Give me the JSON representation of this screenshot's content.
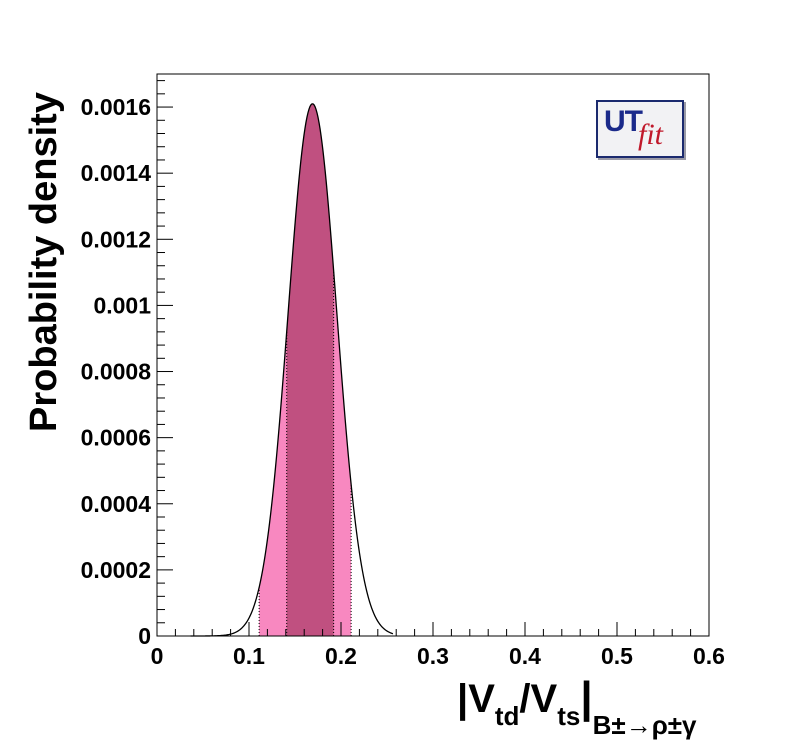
{
  "chart_data": {
    "type": "area",
    "xlabel": {
      "main": "|V",
      "sub1": "td",
      "mid": "/V",
      "sub2": "ts",
      "bar": "|",
      "subscript": "B±→ρ±γ"
    },
    "ylabel": "Probability density",
    "xlim": [
      0,
      0.6
    ],
    "ylim": [
      0,
      0.0017
    ],
    "x_ticks": [
      "0",
      "0.1",
      "0.2",
      "0.3",
      "0.4",
      "0.5",
      "0.6"
    ],
    "y_ticks": [
      "0",
      "0.0002",
      "0.0004",
      "0.0006",
      "0.0008",
      "0.001",
      "0.0012",
      "0.0014",
      "0.0016"
    ],
    "distribution": {
      "shape": "gaussian",
      "mean": 0.169,
      "sigma": 0.0265,
      "peak": 0.00161
    },
    "band_68": [
      0.141,
      0.192
    ],
    "band_95": [
      0.111,
      0.211
    ],
    "grid": false,
    "colors": {
      "band_68": "#c05080",
      "band_95": "#f888c0",
      "curve": "#000000"
    },
    "logo": {
      "ut": "UT",
      "fit": "fit"
    }
  }
}
